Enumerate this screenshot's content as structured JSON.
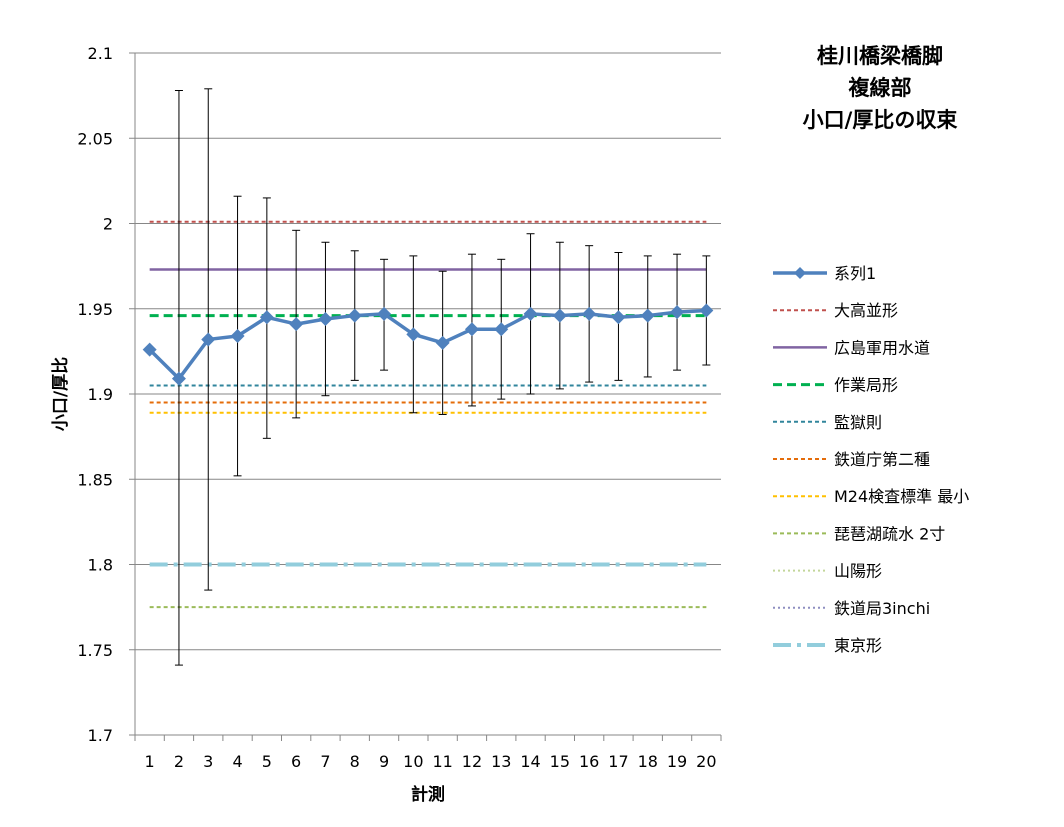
{
  "chart_data": {
    "type": "line",
    "title_lines": [
      "桂川橋梁橋脚",
      "複線部",
      "小口/厚比の収束"
    ],
    "xlabel": "計測",
    "ylabel": "小口/厚比",
    "categories": [
      "1",
      "2",
      "3",
      "4",
      "5",
      "6",
      "7",
      "8",
      "9",
      "10",
      "11",
      "12",
      "13",
      "14",
      "15",
      "16",
      "17",
      "18",
      "19",
      "20"
    ],
    "ylim": [
      1.7,
      2.1
    ],
    "yticks": [
      "1.7",
      "1.75",
      "1.8",
      "1.85",
      "1.9",
      "1.95",
      "2",
      "2.05",
      "2.1"
    ],
    "grid": "horizontal",
    "legend_position": "right",
    "series": [
      {
        "name": "系列1",
        "color": "#4F81BD",
        "style": "line-diamond",
        "values": [
          1.926,
          1.909,
          1.932,
          1.934,
          1.945,
          1.941,
          1.944,
          1.946,
          1.947,
          1.935,
          1.93,
          1.938,
          1.938,
          1.947,
          1.946,
          1.947,
          1.945,
          1.946,
          1.948,
          1.949
        ],
        "error_upper": [
          1.926,
          2.078,
          2.079,
          2.016,
          2.015,
          1.996,
          1.989,
          1.984,
          1.979,
          1.981,
          1.972,
          1.982,
          1.979,
          1.994,
          1.989,
          1.987,
          1.983,
          1.981,
          1.982,
          1.981
        ],
        "error_lower": [
          1.926,
          1.741,
          1.785,
          1.852,
          1.874,
          1.886,
          1.899,
          1.908,
          1.914,
          1.889,
          1.888,
          1.893,
          1.897,
          1.9,
          1.903,
          1.907,
          1.908,
          1.91,
          1.914,
          1.917
        ]
      }
    ],
    "reference_lines": [
      {
        "name": "大高並形",
        "value": 2.001,
        "color": "#C0504D",
        "dash": "short-dash"
      },
      {
        "name": "広島軍用水道",
        "value": 1.973,
        "color": "#8064A2",
        "dash": "solid"
      },
      {
        "name": "作業局形",
        "value": 1.946,
        "color": "#00B050",
        "dash": "long-dash"
      },
      {
        "name": "監獄則",
        "value": 1.905,
        "color": "#31859C",
        "dash": "short-dash"
      },
      {
        "name": "鉄道庁第二種",
        "value": 1.895,
        "color": "#E46C0A",
        "dash": "short-dash"
      },
      {
        "name": "M24検査標準 最小",
        "value": 1.889,
        "color": "#FFC000",
        "dash": "short-dash"
      },
      {
        "name": "琵琶湖疏水 2寸",
        "value": 1.775,
        "color": "#9BBB59",
        "dash": "short-dash"
      },
      {
        "name": "山陽形",
        "value": null,
        "color": "#C3D69B",
        "dash": "dotted"
      },
      {
        "name": "鉄道局3inchi",
        "value": null,
        "color": "#8E8EC0",
        "dash": "dotted"
      },
      {
        "name": "東京形",
        "value": 1.8,
        "color": "#92CDDC",
        "dash": "dash-dot"
      }
    ]
  }
}
